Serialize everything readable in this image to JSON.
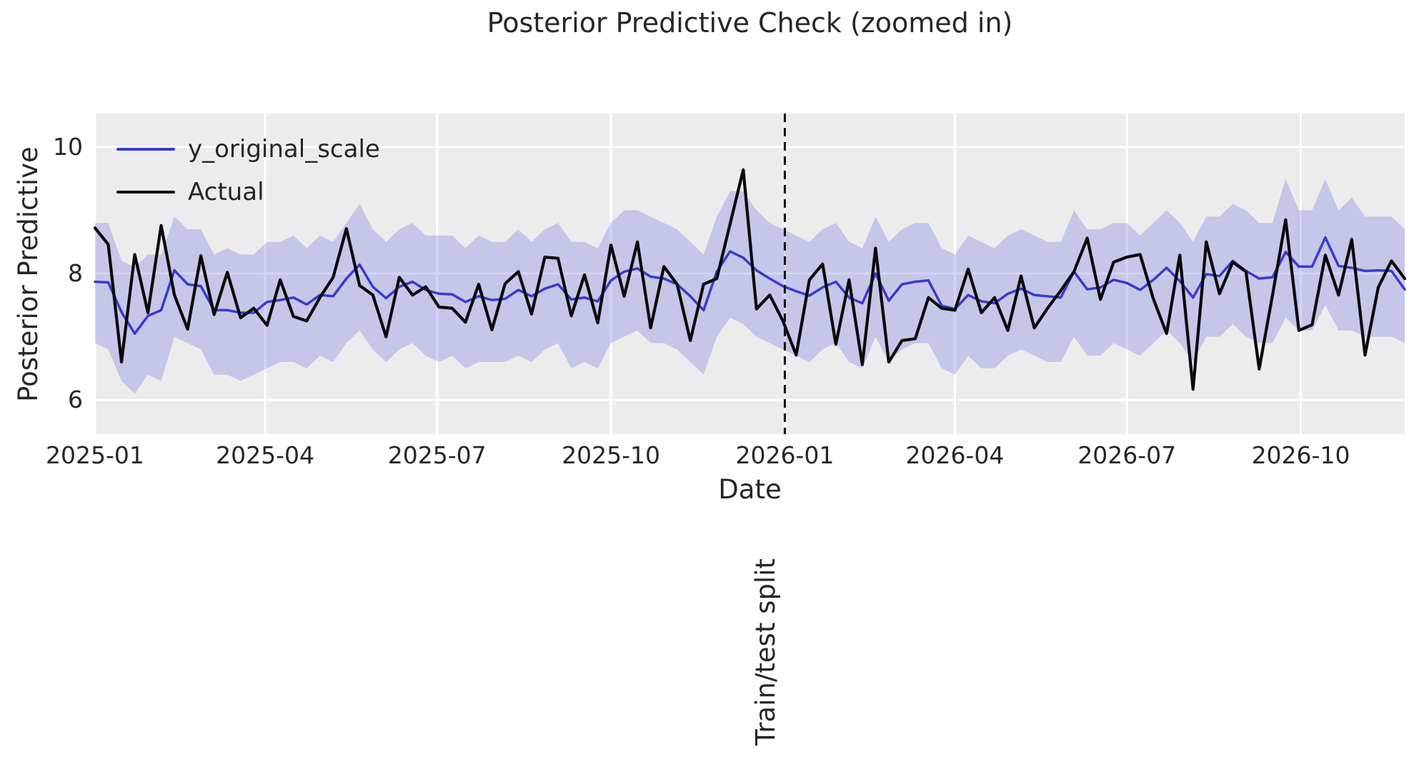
{
  "title": "Posterior Predictive Check (zoomed in)",
  "axes": {
    "xlabel": "Date",
    "ylabel": "Posterior Predictive"
  },
  "legend": {
    "items": [
      {
        "label": "y_original_scale",
        "color": "#3a3ace"
      },
      {
        "label": "Actual",
        "color": "#0a0a0a"
      }
    ]
  },
  "annotations": {
    "split_label": "Train/test split"
  },
  "colors": {
    "page_bg": "#ffffff",
    "plot_bg": "#ececec",
    "grid": "#ffffff",
    "band_fill": "#5f5fe1",
    "band_opacity": 0.27,
    "line_blue": "#3a3ace",
    "line_black": "#0a0a0a",
    "split_line": "#111111",
    "text": "#262626"
  },
  "chart_data": {
    "type": "line",
    "title": "Posterior Predictive Check (zoomed in)",
    "xlabel": "Date",
    "ylabel": "Posterior Predictive",
    "x_start_date": "2025-01-01",
    "x_step_days": 7,
    "n_points": 100,
    "xlim_days": [
      0,
      693
    ],
    "ylim": [
      5.46,
      10.53
    ],
    "grid": true,
    "legend_position": "upper left",
    "x_ticks": [
      {
        "label": "2025-01",
        "day": 0
      },
      {
        "label": "2025-04",
        "day": 90
      },
      {
        "label": "2025-07",
        "day": 181
      },
      {
        "label": "2025-10",
        "day": 273
      },
      {
        "label": "2026-01",
        "day": 365
      },
      {
        "label": "2026-04",
        "day": 455
      },
      {
        "label": "2026-07",
        "day": 546
      },
      {
        "label": "2026-10",
        "day": 638
      }
    ],
    "y_ticks": [
      {
        "label": "6",
        "value": 6
      },
      {
        "label": "8",
        "value": 8
      },
      {
        "label": "10",
        "value": 10
      }
    ],
    "split_line": {
      "day": 365,
      "date": "2026-01-01",
      "label": "Train/test split"
    },
    "series": [
      {
        "name": "y_original_scale",
        "color": "#3a3ace",
        "width": 3.5,
        "values": [
          7.87,
          7.86,
          7.39,
          7.05,
          7.33,
          7.42,
          8.05,
          7.83,
          7.8,
          7.42,
          7.42,
          7.38,
          7.38,
          7.55,
          7.58,
          7.62,
          7.51,
          7.66,
          7.64,
          7.92,
          8.14,
          7.79,
          7.61,
          7.79,
          7.87,
          7.74,
          7.68,
          7.67,
          7.55,
          7.64,
          7.58,
          7.6,
          7.74,
          7.64,
          7.76,
          7.83,
          7.59,
          7.62,
          7.56,
          7.89,
          8.03,
          8.08,
          7.95,
          7.92,
          7.83,
          7.64,
          7.42,
          8.03,
          8.35,
          8.25,
          8.05,
          7.92,
          7.8,
          7.72,
          7.65,
          7.78,
          7.87,
          7.62,
          7.53,
          8.0,
          7.57,
          7.83,
          7.87,
          7.89,
          7.49,
          7.44,
          7.66,
          7.56,
          7.53,
          7.68,
          7.76,
          7.66,
          7.64,
          7.62,
          8.03,
          7.75,
          7.78,
          7.9,
          7.85,
          7.74,
          7.9,
          8.09,
          7.88,
          7.62,
          7.99,
          7.96,
          8.2,
          8.04,
          7.92,
          7.94,
          8.34,
          8.11,
          8.11,
          8.57,
          8.12,
          8.09,
          8.04,
          8.05,
          8.04,
          7.75
        ]
      },
      {
        "name": "Actual",
        "color": "#0a0a0a",
        "width": 4.2,
        "values": [
          8.72,
          8.46,
          6.6,
          8.3,
          7.38,
          8.76,
          7.66,
          7.12,
          8.28,
          7.35,
          8.02,
          7.3,
          7.45,
          7.18,
          7.9,
          7.32,
          7.25,
          7.62,
          7.94,
          8.71,
          7.81,
          7.66,
          7.0,
          7.94,
          7.66,
          7.79,
          7.47,
          7.45,
          7.23,
          7.83,
          7.11,
          7.84,
          8.03,
          7.36,
          8.26,
          8.24,
          7.33,
          7.98,
          7.22,
          8.45,
          7.64,
          8.5,
          7.14,
          8.11,
          7.83,
          6.94,
          7.83,
          7.92,
          8.78,
          9.64,
          7.44,
          7.66,
          7.25,
          6.71,
          7.9,
          8.15,
          6.88,
          7.9,
          6.56,
          8.4,
          6.6,
          6.94,
          6.97,
          7.62,
          7.45,
          7.42,
          8.07,
          7.38,
          7.62,
          7.1,
          7.96,
          7.14,
          7.45,
          7.73,
          8.03,
          8.56,
          7.59,
          8.18,
          8.26,
          8.3,
          7.6,
          7.05,
          8.29,
          6.17,
          8.5,
          7.68,
          8.18,
          8.03,
          6.49,
          7.65,
          8.85,
          7.1,
          7.19,
          8.29,
          7.66,
          8.54,
          6.71,
          7.78,
          8.2,
          7.92
        ]
      }
    ],
    "band": {
      "name": "posterior predictive interval",
      "color": "#5f5fe1",
      "opacity": 0.27,
      "upper": [
        8.8,
        8.8,
        8.2,
        8.1,
        8.3,
        8.3,
        8.9,
        8.7,
        8.7,
        8.3,
        8.4,
        8.3,
        8.3,
        8.5,
        8.5,
        8.6,
        8.4,
        8.6,
        8.5,
        8.8,
        9.1,
        8.7,
        8.5,
        8.7,
        8.8,
        8.6,
        8.6,
        8.6,
        8.4,
        8.6,
        8.5,
        8.5,
        8.7,
        8.5,
        8.7,
        8.8,
        8.5,
        8.5,
        8.4,
        8.8,
        9.0,
        9.0,
        8.9,
        8.8,
        8.7,
        8.5,
        8.3,
        8.9,
        9.3,
        9.3,
        9.0,
        8.8,
        8.7,
        8.6,
        8.5,
        8.7,
        8.8,
        8.5,
        8.4,
        8.9,
        8.5,
        8.7,
        8.8,
        8.8,
        8.4,
        8.3,
        8.6,
        8.5,
        8.4,
        8.6,
        8.7,
        8.6,
        8.5,
        8.5,
        9.0,
        8.7,
        8.7,
        8.8,
        8.8,
        8.6,
        8.8,
        9.0,
        8.8,
        8.5,
        8.9,
        8.9,
        9.1,
        9.0,
        8.8,
        8.8,
        9.5,
        9.0,
        9.0,
        9.5,
        9.0,
        9.2,
        8.9,
        8.9,
        8.9,
        8.7
      ],
      "lower": [
        6.9,
        6.8,
        6.3,
        6.1,
        6.4,
        6.3,
        7.0,
        6.9,
        6.8,
        6.4,
        6.4,
        6.3,
        6.4,
        6.5,
        6.6,
        6.6,
        6.5,
        6.7,
        6.6,
        6.9,
        7.1,
        6.8,
        6.6,
        6.8,
        6.9,
        6.7,
        6.6,
        6.7,
        6.5,
        6.6,
        6.6,
        6.6,
        6.7,
        6.6,
        6.8,
        6.9,
        6.5,
        6.6,
        6.5,
        6.9,
        7.0,
        7.1,
        6.9,
        6.9,
        6.8,
        6.6,
        6.4,
        7.0,
        7.3,
        7.2,
        7.0,
        6.9,
        6.8,
        6.7,
        6.6,
        6.8,
        6.9,
        6.6,
        6.5,
        7.0,
        6.6,
        6.8,
        6.9,
        6.9,
        6.5,
        6.4,
        6.7,
        6.5,
        6.5,
        6.7,
        6.8,
        6.7,
        6.6,
        6.6,
        7.0,
        6.7,
        6.7,
        6.9,
        6.8,
        6.7,
        6.9,
        7.1,
        6.9,
        6.6,
        7.0,
        7.0,
        7.2,
        7.0,
        6.9,
        6.9,
        7.3,
        7.1,
        7.1,
        7.5,
        7.1,
        7.1,
        7.0,
        7.0,
        7.0,
        6.9
      ]
    }
  }
}
